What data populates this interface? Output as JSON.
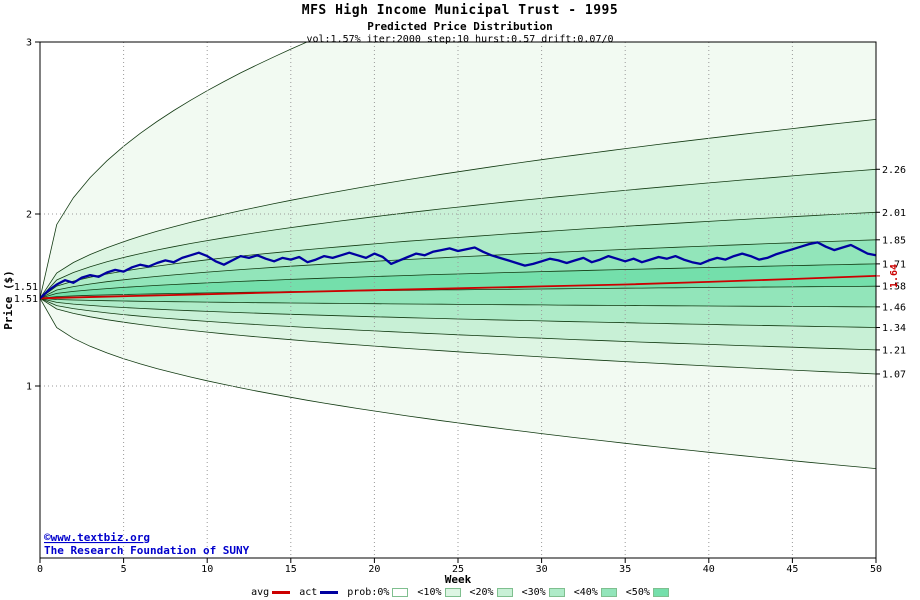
{
  "chart_data": {
    "type": "area",
    "title": "MFS High Income Municipal Trust - 1995",
    "subtitle": "Predicted Price Distribution",
    "params": "vol:1.57% iter:2000 step:10 hurst:0.57 drift:0.07/0",
    "xlabel": "Week",
    "ylabel": "Price ($)",
    "xlim": [
      0,
      50
    ],
    "ylim": [
      0,
      3
    ],
    "grid": "dotted",
    "x_ticks": [
      "0",
      "5",
      "10",
      "15",
      "20",
      "25",
      "30",
      "35",
      "40",
      "45",
      "50"
    ],
    "y_ticks": [
      "1",
      "2",
      "3"
    ],
    "start_value": 1.51,
    "start_labels": [
      {
        "text": "1.51",
        "value": 1.51
      },
      {
        "text": "1.51",
        "value": 1.51
      }
    ],
    "avg_end_label": {
      "text": "1.64",
      "value": 1.64,
      "color": "#cc0000"
    },
    "right_labels": [
      {
        "text": "2.26",
        "value": 2.26
      },
      {
        "text": "2.01",
        "value": 2.01
      },
      {
        "text": "1.85",
        "value": 1.85
      },
      {
        "text": "1.71",
        "value": 1.71
      },
      {
        "text": "1.58",
        "value": 1.58
      },
      {
        "text": "1.46",
        "value": 1.46
      },
      {
        "text": "1.34",
        "value": 1.34
      },
      {
        "text": "1.21",
        "value": 1.21
      },
      {
        "text": "1.07",
        "value": 1.07
      }
    ],
    "bands": [
      {
        "label": "prob:0%",
        "fill": "#f2faf2",
        "upper_end": 4.0,
        "lower_end": 0.52,
        "exp": 0.45
      },
      {
        "label": "<10%",
        "fill": "#ddf5e3",
        "upper_end": 2.55,
        "lower_end": 1.07,
        "exp": 0.5
      },
      {
        "label": "<20%",
        "fill": "#c8f0d6",
        "upper_end": 2.26,
        "lower_end": 1.21,
        "exp": 0.5
      },
      {
        "label": "<30%",
        "fill": "#aeebc8",
        "upper_end": 2.01,
        "lower_end": 1.34,
        "exp": 0.5
      },
      {
        "label": "<40%",
        "fill": "#92e5ba",
        "upper_end": 1.85,
        "lower_end": 1.46,
        "exp": 0.5
      },
      {
        "label": "<50%",
        "fill": "#74dfab",
        "upper_end": 1.71,
        "lower_end": 1.58,
        "exp": 0.5
      }
    ],
    "series": {
      "avg": {
        "label": "avg",
        "color": "#cc0000",
        "x": [
          0,
          5,
          10,
          15,
          20,
          25,
          30,
          35,
          40,
          45,
          50
        ],
        "values": [
          1.51,
          1.522,
          1.534,
          1.546,
          1.557,
          1.568,
          1.579,
          1.59,
          1.605,
          1.622,
          1.64
        ]
      },
      "act": {
        "label": "act",
        "color": "#0000a0",
        "x_start": 0,
        "x_step": 0.5,
        "values": [
          1.51,
          1.555,
          1.59,
          1.615,
          1.6,
          1.63,
          1.645,
          1.635,
          1.66,
          1.675,
          1.665,
          1.69,
          1.705,
          1.695,
          1.715,
          1.73,
          1.72,
          1.745,
          1.76,
          1.775,
          1.755,
          1.725,
          1.705,
          1.73,
          1.755,
          1.745,
          1.76,
          1.74,
          1.725,
          1.745,
          1.735,
          1.75,
          1.72,
          1.735,
          1.755,
          1.745,
          1.76,
          1.775,
          1.76,
          1.745,
          1.77,
          1.75,
          1.71,
          1.73,
          1.75,
          1.77,
          1.76,
          1.78,
          1.79,
          1.8,
          1.785,
          1.795,
          1.805,
          1.78,
          1.76,
          1.745,
          1.73,
          1.715,
          1.7,
          1.71,
          1.725,
          1.74,
          1.73,
          1.715,
          1.73,
          1.745,
          1.72,
          1.735,
          1.755,
          1.74,
          1.725,
          1.74,
          1.72,
          1.735,
          1.75,
          1.74,
          1.755,
          1.735,
          1.72,
          1.71,
          1.73,
          1.745,
          1.735,
          1.755,
          1.77,
          1.755,
          1.735,
          1.745,
          1.765,
          1.78,
          1.795,
          1.81,
          1.825,
          1.835,
          1.81,
          1.79,
          1.805,
          1.82,
          1.795,
          1.77,
          1.76
        ]
      }
    }
  },
  "footer": {
    "line1": "©www.textbiz.org",
    "line2": "The Research Foundation of SUNY",
    "color": "#0000cc"
  },
  "legend": {
    "items": [
      {
        "label": "avg",
        "type": "line",
        "color": "#cc0000"
      },
      {
        "label": "act",
        "type": "line",
        "color": "#0000a0"
      },
      {
        "label": "prob:0%",
        "type": "box",
        "color": "#ffffff"
      },
      {
        "label": "<10%",
        "type": "box",
        "color": "#ddf5e3"
      },
      {
        "label": "<20%",
        "type": "box",
        "color": "#c8f0d6"
      },
      {
        "label": "<30%",
        "type": "box",
        "color": "#aeebc8"
      },
      {
        "label": "<40%",
        "type": "box",
        "color": "#92e5ba"
      },
      {
        "label": "<50%",
        "type": "box",
        "color": "#74dfab"
      }
    ]
  }
}
